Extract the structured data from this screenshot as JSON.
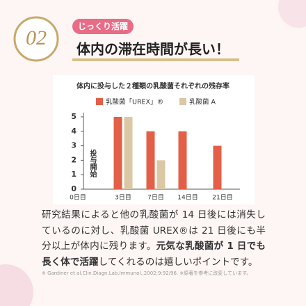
{
  "header": {
    "number": "02",
    "tag": "じっくり活躍",
    "headline": "体内の滞在時間が長い！"
  },
  "chart_data": {
    "type": "bar",
    "title": "体内に投与した２種類の乳酸菌それぞれの残存率",
    "categories": [
      "0日目",
      "3日目",
      "7日目",
      "14日目",
      "21日目"
    ],
    "series": [
      {
        "name": "乳酸菌「UREX」®",
        "color": "#e35f48",
        "values": [
          null,
          5,
          4,
          4,
          3
        ]
      },
      {
        "name": "乳酸菌 A",
        "color": "#dcc7a5",
        "values": [
          null,
          5,
          2,
          0,
          0
        ]
      }
    ],
    "ylim": [
      0,
      5
    ],
    "yticks": [
      0,
      1,
      2,
      3,
      4,
      5
    ],
    "annotation": "投与開始"
  },
  "body": [
    {
      "text": "研究結果によると他の乳酸菌が 14 日後には消失しているのに対し、乳酸菌 UREX®は 21 日後にも半分以上が体内に残ります。",
      "bold": false
    },
    {
      "text": "元気な乳酸菌が 1 日でも長く体で活躍",
      "bold": true
    },
    {
      "text": "してくれるのは嬉しいポイントです。",
      "bold": false
    }
  ],
  "footnote": "※ Gardiner et al.Clin.Diagn.Lab.Immunol.,2002;9:92/96. ※原著を参考に改変しています。"
}
